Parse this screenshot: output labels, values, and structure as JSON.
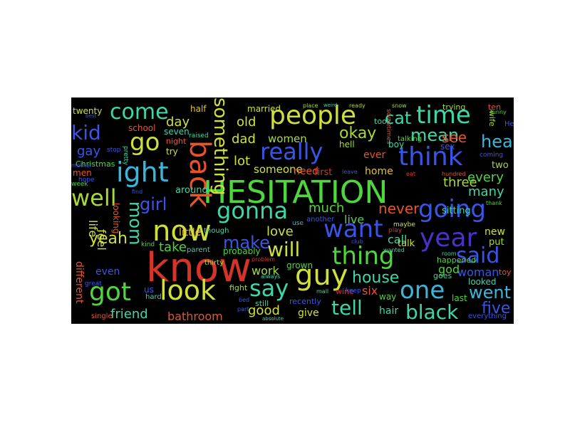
{
  "palette": {
    "orange": "#e8532a",
    "red": "#d5342a",
    "yellow": "#cfe03a",
    "lime": "#a7d93a",
    "green": "#4fd53d",
    "teal": "#3fd6a8",
    "cyan": "#3bb6d8",
    "blue": "#3a55e6",
    "purple": "#4a32c8",
    "gold": "#e3c23a",
    "darkred": "#b7221f"
  },
  "words": [
    {
      "id": "hesitation",
      "text": "HESITATION",
      "color": "green"
    },
    {
      "id": "know",
      "text": "know",
      "color": "red"
    },
    {
      "id": "now",
      "text": "now",
      "color": "yellow"
    },
    {
      "id": "people",
      "text": "people",
      "color": "yellow"
    },
    {
      "id": "going",
      "text": "going",
      "color": "blue"
    },
    {
      "id": "really",
      "text": "really",
      "color": "blue"
    },
    {
      "id": "think",
      "text": "think",
      "color": "blue"
    },
    {
      "id": "time",
      "text": "time",
      "color": "teal"
    },
    {
      "id": "right",
      "text": "ight",
      "color": "cyan"
    },
    {
      "id": "guy",
      "text": "guy",
      "color": "yellow"
    },
    {
      "id": "look",
      "text": "look",
      "color": "yellow"
    },
    {
      "id": "got",
      "text": "got",
      "color": "green"
    },
    {
      "id": "gonna",
      "text": "gonna",
      "color": "teal"
    },
    {
      "id": "want",
      "text": "want",
      "color": "blue"
    },
    {
      "id": "thing",
      "text": "thing",
      "color": "green"
    },
    {
      "id": "one",
      "text": "one",
      "color": "cyan"
    },
    {
      "id": "year",
      "text": "year",
      "color": "purple"
    },
    {
      "id": "said",
      "text": "said",
      "color": "blue"
    },
    {
      "id": "come",
      "text": "come",
      "color": "teal"
    },
    {
      "id": "go",
      "text": "go",
      "color": "yellow"
    },
    {
      "id": "back",
      "text": "back",
      "color": "orange"
    },
    {
      "id": "well",
      "text": "well",
      "color": "lime"
    },
    {
      "id": "say",
      "text": "say",
      "color": "teal"
    },
    {
      "id": "will",
      "text": "will",
      "color": "yellow"
    },
    {
      "id": "tell",
      "text": "tell",
      "color": "teal"
    },
    {
      "id": "black",
      "text": "black",
      "color": "teal"
    },
    {
      "id": "went",
      "text": "went",
      "color": "cyan"
    },
    {
      "id": "something",
      "text": "something",
      "color": "yellow"
    },
    {
      "id": "kid",
      "text": "kid",
      "color": "blue"
    },
    {
      "id": "cat",
      "text": "cat",
      "color": "teal"
    },
    {
      "id": "mean",
      "text": "mean",
      "color": "teal"
    },
    {
      "id": "okay",
      "text": "okay",
      "color": "lime"
    },
    {
      "id": "head",
      "text": "head",
      "color": "cyan"
    },
    {
      "id": "mom",
      "text": "mom",
      "color": "teal"
    },
    {
      "id": "girl",
      "text": "girl",
      "color": "blue"
    },
    {
      "id": "make",
      "text": "make",
      "color": "blue"
    },
    {
      "id": "yeah",
      "text": "yeah",
      "color": "yellow"
    },
    {
      "id": "house",
      "text": "house",
      "color": "teal"
    },
    {
      "id": "five",
      "text": "five",
      "color": "blue"
    },
    {
      "id": "friend",
      "text": "friend",
      "color": "teal"
    },
    {
      "id": "good",
      "text": "good",
      "color": "yellow"
    },
    {
      "id": "bathroom",
      "text": "bathroom",
      "color": "orange"
    },
    {
      "id": "see",
      "text": "see",
      "color": "orange"
    },
    {
      "id": "never",
      "text": "never",
      "color": "orange"
    },
    {
      "id": "love",
      "text": "love",
      "color": "yellow"
    },
    {
      "id": "much",
      "text": "much",
      "color": "green"
    },
    {
      "id": "take",
      "text": "take",
      "color": "green"
    },
    {
      "id": "three",
      "text": "three",
      "color": "lime"
    },
    {
      "id": "every",
      "text": "every",
      "color": "green"
    },
    {
      "id": "many",
      "text": "many",
      "color": "teal"
    },
    {
      "id": "lot",
      "text": "lot",
      "color": "yellow"
    },
    {
      "id": "dad",
      "text": "dad",
      "color": "yellow"
    },
    {
      "id": "old",
      "text": "old",
      "color": "yellow"
    },
    {
      "id": "day",
      "text": "day",
      "color": "yellow"
    },
    {
      "id": "gay",
      "text": "gay",
      "color": "blue"
    },
    {
      "id": "life",
      "text": "life",
      "color": "yellow"
    },
    {
      "id": "feel",
      "text": "feel",
      "color": "yellow"
    },
    {
      "id": "live",
      "text": "live",
      "color": "green"
    },
    {
      "id": "call",
      "text": "call",
      "color": "teal"
    },
    {
      "id": "six",
      "text": "six",
      "color": "orange"
    },
    {
      "id": "work",
      "text": "work",
      "color": "lime"
    },
    {
      "id": "god",
      "text": "god",
      "color": "green"
    },
    {
      "id": "woman",
      "text": "woman",
      "color": "blue"
    },
    {
      "id": "women",
      "text": "women",
      "color": "lime"
    },
    {
      "id": "someone",
      "text": "someone",
      "color": "yellow"
    },
    {
      "id": "need",
      "text": "need",
      "color": "orange"
    },
    {
      "id": "home",
      "text": "home",
      "color": "gold"
    },
    {
      "id": "first",
      "text": "first",
      "color": "red"
    },
    {
      "id": "ever",
      "text": "ever",
      "color": "orange"
    },
    {
      "id": "little",
      "text": "little",
      "color": "gold"
    },
    {
      "id": "around",
      "text": "around",
      "color": "teal"
    },
    {
      "id": "new",
      "text": "new",
      "color": "yellow"
    },
    {
      "id": "put",
      "text": "put",
      "color": "lime"
    },
    {
      "id": "two",
      "text": "two",
      "color": "lime"
    },
    {
      "id": "last",
      "text": "last",
      "color": "green"
    },
    {
      "id": "hair",
      "text": "hair",
      "color": "teal"
    },
    {
      "id": "give",
      "text": "give",
      "color": "yellow"
    },
    {
      "id": "even",
      "text": "even",
      "color": "blue"
    },
    {
      "id": "us",
      "text": "us",
      "color": "blue"
    },
    {
      "id": "looked",
      "text": "looked",
      "color": "teal"
    },
    {
      "id": "sitting",
      "text": "sitting",
      "color": "teal"
    },
    {
      "id": "probably",
      "text": "probably",
      "color": "green"
    },
    {
      "id": "grown",
      "text": "grown",
      "color": "green"
    },
    {
      "id": "different",
      "text": "different",
      "color": "orange"
    },
    {
      "id": "looking",
      "text": "looking",
      "color": "orange"
    },
    {
      "id": "talk",
      "text": "talk",
      "color": "yellow"
    },
    {
      "id": "school",
      "text": "school",
      "color": "orange"
    },
    {
      "id": "seven",
      "text": "seven",
      "color": "teal"
    },
    {
      "id": "twenty",
      "text": "twenty",
      "color": "yellow"
    },
    {
      "id": "half",
      "text": "half",
      "color": "gold"
    },
    {
      "id": "try",
      "text": "try",
      "color": "yellow"
    },
    {
      "id": "men",
      "text": "men",
      "color": "orange"
    },
    {
      "id": "christmas",
      "text": "Christmas",
      "color": "green"
    },
    {
      "id": "way",
      "text": "way",
      "color": "green"
    },
    {
      "id": "happened",
      "text": "happened",
      "color": "green"
    },
    {
      "id": "goes",
      "text": "goes",
      "color": "teal"
    },
    {
      "id": "sex",
      "text": "sex",
      "color": "blue"
    },
    {
      "id": "boy",
      "text": "boy",
      "color": "teal"
    },
    {
      "id": "hell",
      "text": "hell",
      "color": "lime"
    },
    {
      "id": "married",
      "text": "married",
      "color": "yellow"
    },
    {
      "id": "fight",
      "text": "fight",
      "color": "lime"
    },
    {
      "id": "toy",
      "text": "toy",
      "color": "orange"
    },
    {
      "id": "took",
      "text": "took",
      "color": "teal"
    },
    {
      "id": "wife",
      "text": "wife",
      "color": "lime"
    },
    {
      "id": "night",
      "text": "night",
      "color": "orange"
    },
    {
      "id": "ten",
      "text": "ten",
      "color": "orange"
    },
    {
      "id": "trying",
      "text": "trying",
      "color": "lime"
    },
    {
      "id": "recently",
      "text": "recently",
      "color": "blue"
    },
    {
      "id": "wine",
      "text": "wine",
      "color": "red"
    },
    {
      "id": "still",
      "text": "still",
      "color": "teal"
    },
    {
      "id": "keep",
      "text": "keep",
      "color": "blue"
    },
    {
      "id": "hard",
      "text": "hard",
      "color": "teal"
    },
    {
      "id": "everything",
      "text": "everything",
      "color": "blue"
    },
    {
      "id": "though",
      "text": "though",
      "color": "teal"
    },
    {
      "id": "thirty",
      "text": "thirty",
      "color": "lime"
    },
    {
      "id": "parent",
      "text": "parent",
      "color": "teal"
    },
    {
      "id": "single",
      "text": "single",
      "color": "orange"
    },
    {
      "id": "week",
      "text": "week",
      "color": "green"
    },
    {
      "id": "hope",
      "text": "hope",
      "color": "blue"
    },
    {
      "id": "coming",
      "text": "coming",
      "color": "blue"
    },
    {
      "id": "play",
      "text": "play",
      "color": "red"
    },
    {
      "id": "maybe",
      "text": "maybe",
      "color": "yellow"
    },
    {
      "id": "another",
      "text": "another",
      "color": "blue"
    },
    {
      "id": "use",
      "text": "use",
      "color": "cyan"
    },
    {
      "id": "stop",
      "text": "stop",
      "color": "blue"
    },
    {
      "id": "pretty",
      "text": "pretty",
      "color": "teal"
    },
    {
      "id": "talking",
      "text": "talking",
      "color": "green"
    },
    {
      "id": "leave",
      "text": "leave",
      "color": "blue"
    },
    {
      "id": "raised",
      "text": "raised",
      "color": "teal"
    },
    {
      "id": "kind",
      "text": "kind",
      "color": "green"
    },
    {
      "id": "hey",
      "text": "Hey",
      "color": "blue"
    },
    {
      "id": "great",
      "text": "great",
      "color": "blue"
    },
    {
      "id": "find",
      "text": "find",
      "color": "blue"
    },
    {
      "id": "room",
      "text": "room",
      "color": "teal"
    },
    {
      "id": "wanted",
      "text": "wanted",
      "color": "teal"
    },
    {
      "id": "hundred",
      "text": "hundred",
      "color": "orange"
    },
    {
      "id": "thank",
      "text": "thank",
      "color": "green"
    },
    {
      "id": "funny",
      "text": "funny",
      "color": "green"
    },
    {
      "id": "ready",
      "text": "ready",
      "color": "lime"
    },
    {
      "id": "mother",
      "text": "mother",
      "color": "blue"
    },
    {
      "id": "sometimes",
      "text": "sometimes",
      "color": "orange"
    },
    {
      "id": "best",
      "text": "best",
      "color": "blue"
    },
    {
      "id": "snow",
      "text": "snow",
      "color": "lime"
    },
    {
      "id": "place",
      "text": "place",
      "color": "lime"
    },
    {
      "id": "weird",
      "text": "weird",
      "color": "teal"
    },
    {
      "id": "always",
      "text": "always",
      "color": "teal"
    },
    {
      "id": "problem",
      "text": "problem",
      "color": "red"
    },
    {
      "id": "eat",
      "text": "eat",
      "color": "red"
    },
    {
      "id": "club",
      "text": "club",
      "color": "blue"
    },
    {
      "id": "mall",
      "text": "mall",
      "color": "teal"
    },
    {
      "id": "part",
      "text": "part",
      "color": "blue"
    },
    {
      "id": "bed",
      "text": "bed",
      "color": "blue"
    },
    {
      "id": "absolute",
      "text": "absolute",
      "color": "teal"
    }
  ]
}
